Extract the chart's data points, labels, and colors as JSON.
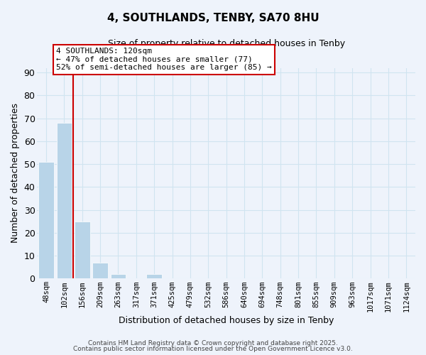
{
  "title": "4, SOUTHLANDS, TENBY, SA70 8HU",
  "subtitle": "Size of property relative to detached houses in Tenby",
  "xlabel": "Distribution of detached houses by size in Tenby",
  "ylabel": "Number of detached properties",
  "bar_labels": [
    "48sqm",
    "102sqm",
    "156sqm",
    "209sqm",
    "263sqm",
    "317sqm",
    "371sqm",
    "425sqm",
    "479sqm",
    "532sqm",
    "586sqm",
    "640sqm",
    "694sqm",
    "748sqm",
    "801sqm",
    "855sqm",
    "909sqm",
    "963sqm",
    "1017sqm",
    "1071sqm",
    "1124sqm"
  ],
  "bar_values": [
    51,
    68,
    25,
    7,
    2,
    0,
    2,
    0,
    0,
    0,
    0,
    0,
    0,
    0,
    0,
    0,
    0,
    0,
    0,
    0,
    0
  ],
  "bar_color": "#b8d4e8",
  "vline_x": 1.5,
  "vline_color": "#cc0000",
  "annotation_box_text": "4 SOUTHLANDS: 120sqm\n← 47% of detached houses are smaller (77)\n52% of semi-detached houses are larger (85) →",
  "ylim": [
    0,
    92
  ],
  "yticks": [
    0,
    10,
    20,
    30,
    40,
    50,
    60,
    70,
    80,
    90
  ],
  "grid_color": "#d0e4f0",
  "background_color": "#eef3fb",
  "footer_line1": "Contains HM Land Registry data © Crown copyright and database right 2025.",
  "footer_line2": "Contains public sector information licensed under the Open Government Licence v3.0."
}
